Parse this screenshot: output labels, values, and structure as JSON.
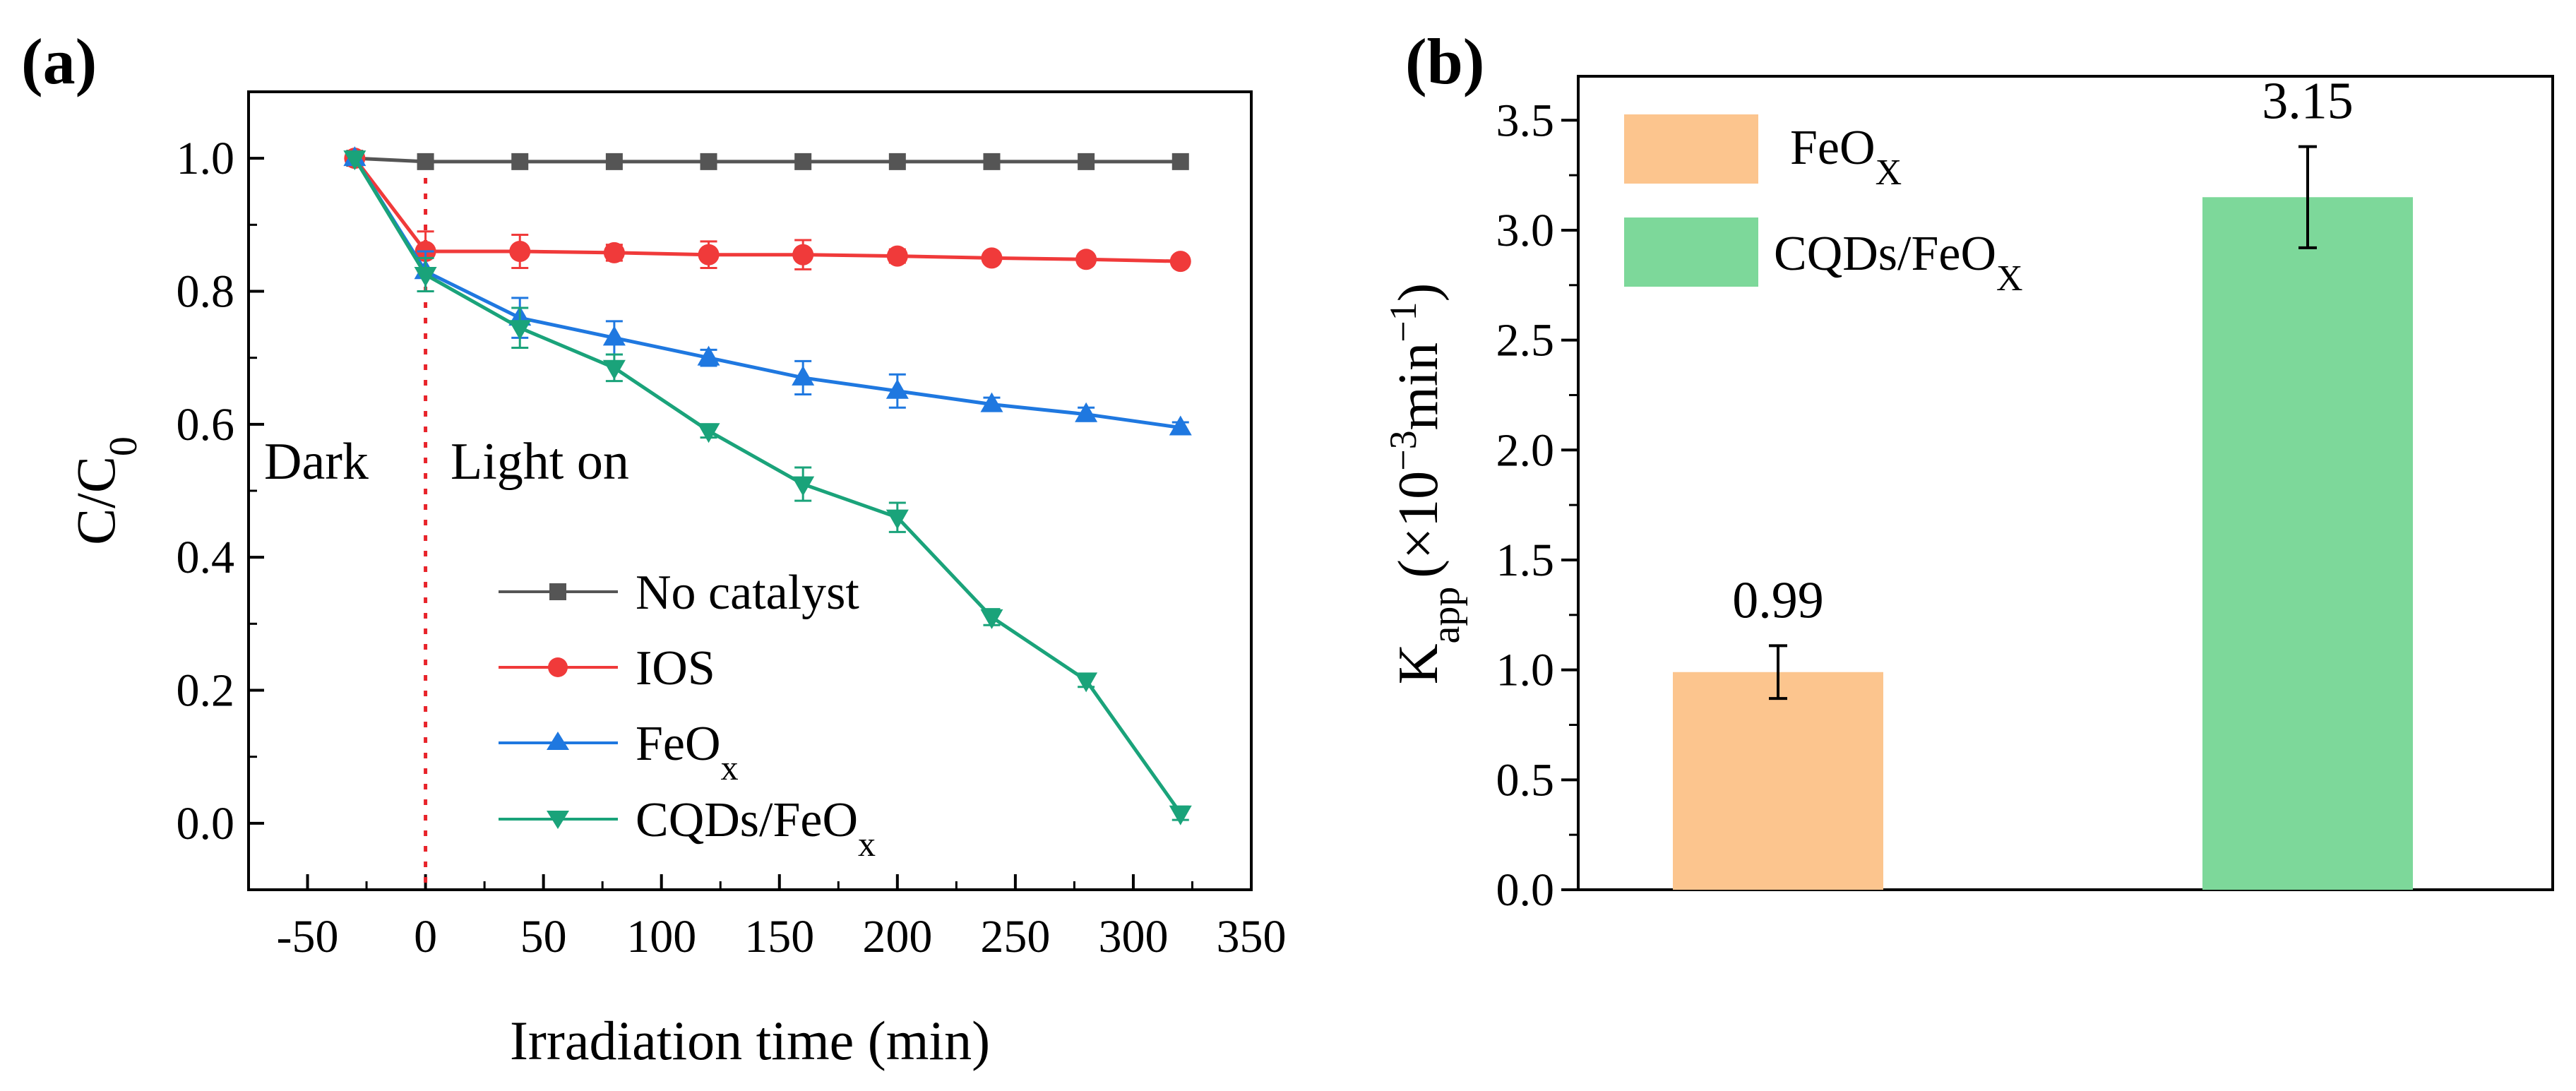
{
  "chart_data": [
    {
      "panel_label": "(a)",
      "type": "line",
      "xlabel": "Irradiation time (min)",
      "ylabel": {
        "main": "C/C",
        "sub": "0"
      },
      "xlim": [
        -75,
        350
      ],
      "ylim": [
        -0.1,
        1.1
      ],
      "xticks": [
        -50,
        0,
        50,
        100,
        150,
        200,
        250,
        300,
        350
      ],
      "yticks": [
        "0.0",
        "0.2",
        "0.4",
        "0.6",
        "0.8",
        "1.0"
      ],
      "light_on_at": 0,
      "annotations": {
        "dark": "Dark",
        "light": "Light on"
      },
      "x": [
        -30,
        0,
        40,
        80,
        120,
        160,
        200,
        240,
        280,
        320
      ],
      "series": [
        {
          "name": "No catalyst",
          "name_sub": "",
          "color": "#555555",
          "marker": "square",
          "values": [
            1.0,
            0.995,
            0.995,
            0.995,
            0.995,
            0.995,
            0.995,
            0.995,
            0.995,
            0.995
          ],
          "errors": [
            0,
            0,
            0,
            0,
            0,
            0,
            0,
            0,
            0,
            0
          ]
        },
        {
          "name": "IOS",
          "name_sub": "",
          "color": "#f03a3a",
          "marker": "circle",
          "values": [
            1.0,
            0.86,
            0.86,
            0.858,
            0.855,
            0.855,
            0.853,
            0.85,
            0.848,
            0.845
          ],
          "errors": [
            0,
            0.03,
            0.025,
            0.012,
            0.02,
            0.022,
            0.01,
            0.008,
            0.008,
            0.006
          ]
        },
        {
          "name": "FeO",
          "name_sub": "x",
          "color": "#1f78e0",
          "marker": "triangle-up",
          "values": [
            1.0,
            0.83,
            0.76,
            0.73,
            0.7,
            0.67,
            0.65,
            0.63,
            0.615,
            0.595
          ],
          "errors": [
            0,
            0.03,
            0.03,
            0.025,
            0.012,
            0.025,
            0.025,
            0.01,
            0.01,
            0.008
          ]
        },
        {
          "name": "CQDs/FeO",
          "name_sub": "x",
          "color": "#1aa37a",
          "marker": "triangle-down",
          "values": [
            1.0,
            0.825,
            0.745,
            0.685,
            0.59,
            0.51,
            0.46,
            0.31,
            0.215,
            0.015
          ],
          "errors": [
            0,
            0.025,
            0.03,
            0.02,
            0.01,
            0.025,
            0.022,
            0.012,
            0.01,
            0.01
          ]
        }
      ]
    },
    {
      "panel_label": "(b)",
      "type": "bar",
      "ylabel": {
        "main": "K",
        "sub": "app",
        "unit_prefix": "(×10",
        "unit_exp": "−3",
        "unit_mid": "min",
        "unit_exp2": "−1",
        "unit_suffix": ")"
      },
      "ylim": [
        0,
        3.7
      ],
      "yticks": [
        "0.0",
        "0.5",
        "1.0",
        "1.5",
        "2.0",
        "2.5",
        "3.0",
        "3.5"
      ],
      "bars": [
        {
          "name": "FeO",
          "name_sub": "X",
          "value": 0.99,
          "label": "0.99",
          "error": 0.12,
          "color": "#fcc58e"
        },
        {
          "name": "CQDs/FeO",
          "name_sub": "X",
          "value": 3.15,
          "label": "3.15",
          "error": 0.23,
          "color": "#7dd89a"
        }
      ]
    }
  ]
}
